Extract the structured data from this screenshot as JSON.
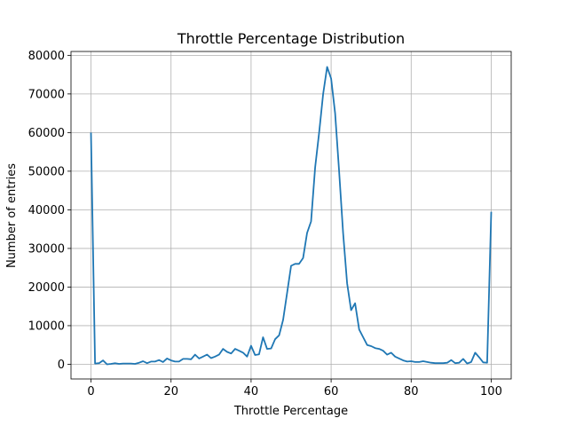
{
  "chart_data": {
    "type": "line",
    "title": "Throttle Percentage Distribution",
    "xlabel": "Throttle Percentage",
    "ylabel": "Number of entries",
    "xlim": [
      -5,
      105
    ],
    "ylim": [
      -3800,
      81000
    ],
    "xticks": [
      0,
      20,
      40,
      60,
      80,
      100
    ],
    "yticks": [
      0,
      10000,
      20000,
      30000,
      40000,
      50000,
      60000,
      70000,
      80000
    ],
    "grid": true,
    "line_color": "#1f77b4",
    "series": [
      {
        "x": [
          0,
          1,
          2,
          3,
          4,
          5,
          6,
          7,
          8,
          9,
          10,
          11,
          12,
          13,
          14,
          15,
          16,
          17,
          18,
          19,
          20,
          21,
          22,
          23,
          24,
          25,
          26,
          27,
          28,
          29,
          30,
          31,
          32,
          33,
          34,
          35,
          36,
          37,
          38,
          39,
          40,
          41,
          42,
          43,
          44,
          45,
          46,
          47,
          48,
          49,
          50,
          51,
          52,
          53,
          54,
          55,
          56,
          57,
          58,
          59,
          60,
          61,
          62,
          63,
          64,
          65,
          66,
          67,
          68,
          69,
          70,
          71,
          72,
          73,
          74,
          75,
          76,
          77,
          78,
          79,
          80,
          81,
          82,
          83,
          84,
          85,
          86,
          87,
          88,
          89,
          90,
          91,
          92,
          93,
          94,
          95,
          96,
          97,
          98,
          99,
          100
        ],
        "values": [
          60000,
          200,
          300,
          1000,
          0,
          100,
          300,
          100,
          200,
          200,
          200,
          100,
          400,
          800,
          300,
          700,
          700,
          1100,
          600,
          1500,
          1000,
          700,
          700,
          1400,
          1400,
          1300,
          2500,
          1500,
          2000,
          2500,
          1600,
          2000,
          2500,
          4000,
          3200,
          2800,
          4000,
          3500,
          3000,
          2000,
          4800,
          2400,
          2600,
          7000,
          4000,
          4100,
          6500,
          7500,
          11500,
          18500,
          25500,
          26000,
          26000,
          27500,
          34000,
          37000,
          51000,
          60000,
          70000,
          77000,
          74000,
          65000,
          50000,
          34000,
          21000,
          14000,
          15800,
          9000,
          7000,
          5000,
          4700,
          4200,
          4000,
          3500,
          2500,
          3000,
          2000,
          1500,
          1000,
          700,
          800,
          600,
          600,
          800,
          600,
          400,
          300,
          300,
          300,
          400,
          1100,
          300,
          400,
          1400,
          200,
          600,
          3000,
          1800,
          500,
          400,
          39500
        ]
      }
    ]
  }
}
